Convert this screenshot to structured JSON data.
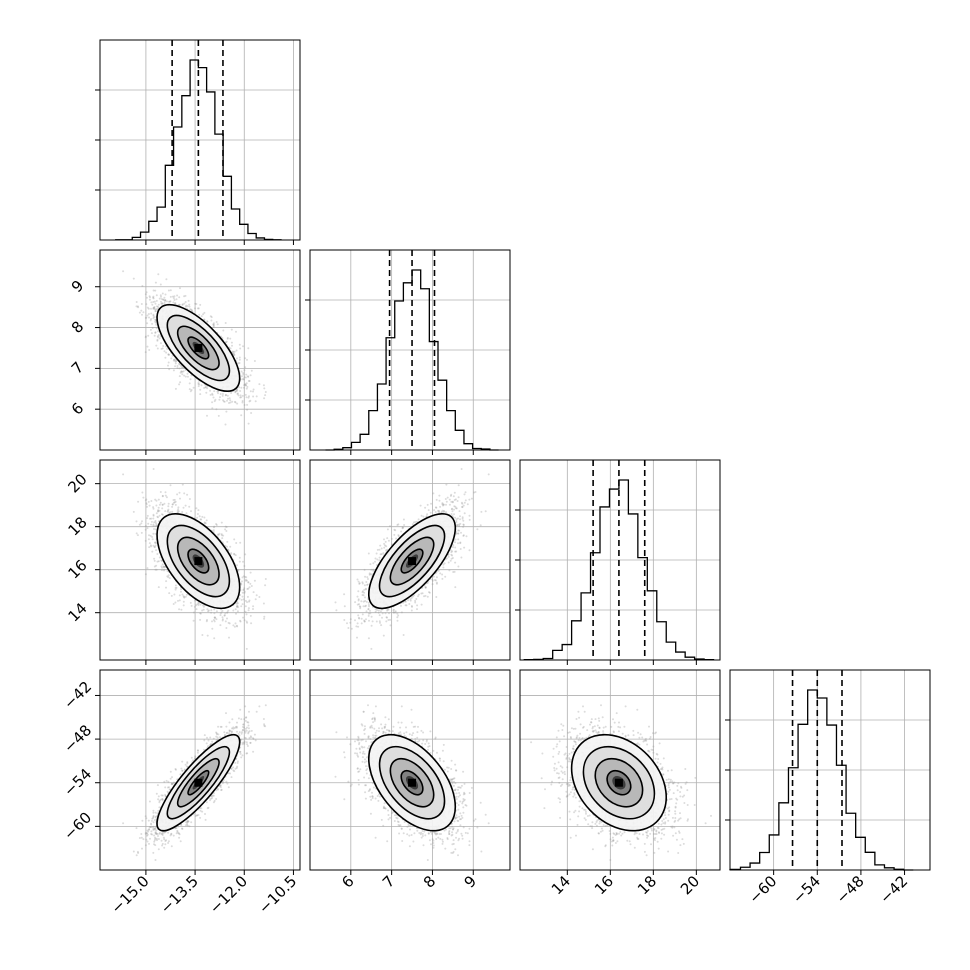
{
  "chart_data": {
    "type": "corner",
    "n_params": 4,
    "colors": {
      "frame": "#000000",
      "grid": "#b0b0b0",
      "scatter": "#9a9a9a",
      "contour_fills": [
        "#f4f4f4",
        "#dcdcdc",
        "#b4b4b4",
        "#7d7d7d",
        "#3c3c3c",
        "#000000"
      ]
    },
    "params": [
      {
        "range": [
          -16.4,
          -10.3
        ],
        "ticks": [
          -15.0,
          -13.5,
          -12.0,
          -10.5
        ],
        "tick_labels": [
          "−15.0",
          "−13.5",
          "−12.0",
          "−10.5"
        ],
        "mean": -13.4,
        "sd": 0.63,
        "quantiles": [
          -14.2,
          -13.4,
          -12.65
        ]
      },
      {
        "range": [
          5.0,
          9.9
        ],
        "ticks": [
          6,
          7,
          8,
          9
        ],
        "tick_labels": [
          "6",
          "7",
          "8",
          "9"
        ],
        "mean": 7.5,
        "sd": 0.53,
        "quantiles": [
          6.95,
          7.5,
          8.05
        ]
      },
      {
        "range": [
          11.8,
          21.1
        ],
        "ticks": [
          14,
          16,
          18,
          20
        ],
        "tick_labels": [
          "14",
          "16",
          "18",
          "20"
        ],
        "mean": 16.4,
        "sd": 1.1,
        "quantiles": [
          15.2,
          16.4,
          17.6
        ]
      },
      {
        "range": [
          -66.0,
          -38.5
        ],
        "ticks": [
          -60,
          -54,
          -48,
          -42
        ],
        "tick_labels": [
          "−60",
          "−54",
          "−48",
          "−42"
        ],
        "mean": -54.0,
        "sd": 3.3,
        "quantiles": [
          -57.4,
          -54.0,
          -50.6
        ]
      }
    ],
    "correlations": {
      "1-0": -0.7,
      "2-0": -0.55,
      "2-1": 0.7,
      "3-0": 0.85,
      "3-1": -0.5,
      "3-2": -0.3
    },
    "histogram_bins": 20,
    "grid": true,
    "scatter": true
  }
}
